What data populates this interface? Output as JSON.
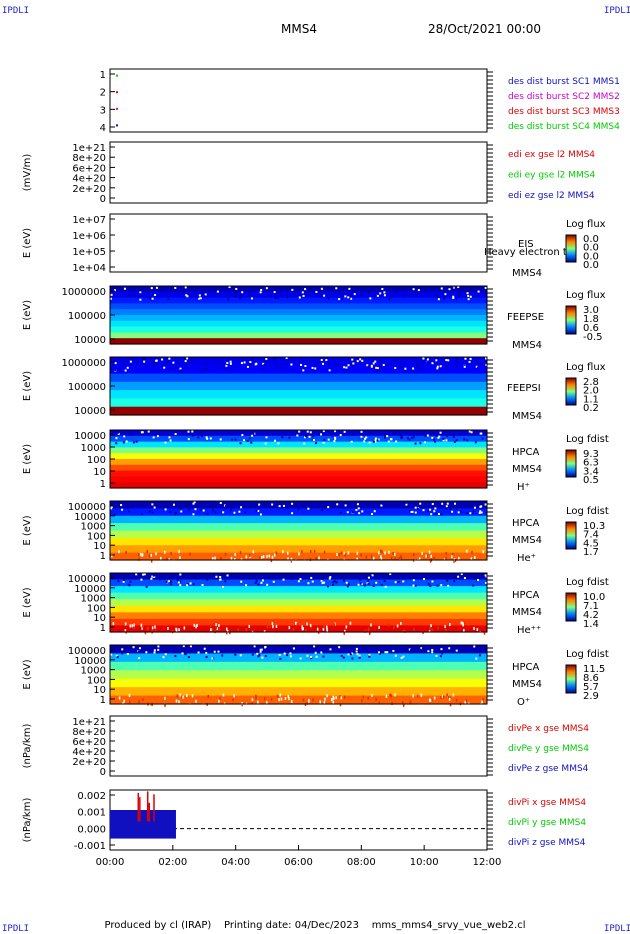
{
  "header": {
    "corner_label": "IPDLI",
    "spacecraft": "MMS4",
    "date": "28/Oct/2021 00:00"
  },
  "footer": {
    "text": "Produced by cl (IRAP)    Printing date: 04/Dec/2023    mms_mms4_srvy_vue_web2.cl"
  },
  "x_axis": {
    "ticks": [
      "00:00",
      "02:00",
      "04:00",
      "06:00",
      "08:00",
      "10:00",
      "12:00"
    ]
  },
  "colors": {
    "red": "#dd0000",
    "green": "#00cc00",
    "blue": "#1010c0",
    "magenta": "#cc00cc"
  },
  "chart_data": [
    {
      "type": "scatter",
      "ytick_labels": [
        "1",
        "2",
        "3",
        "4"
      ],
      "ylim": [
        0.6,
        4.4
      ],
      "series": [
        {
          "name": "des dist burst SC1 MMS1",
          "color": "#1010c0",
          "x": [
            0.05
          ],
          "y": [
            1
          ]
        },
        {
          "name": "des dist burst SC2 MMS2",
          "color": "#cc00cc",
          "x": [
            0.05
          ],
          "y": [
            2
          ]
        },
        {
          "name": "des dist burst SC3 MMS3",
          "color": "#dd0000",
          "x": [
            0.05
          ],
          "y": [
            3
          ]
        },
        {
          "name": "des dist burst SC4 MMS4",
          "color": "#00cc00",
          "x": [
            0.05
          ],
          "y": [
            4
          ]
        }
      ]
    },
    {
      "type": "line",
      "ylabel": "(mV/m)",
      "ytick_labels": [
        "1e+21",
        "8e+20",
        "6e+20",
        "4e+20",
        "2e+20",
        "0"
      ],
      "ylim": [
        0,
        1e+21
      ],
      "series": [
        {
          "name": "edi ex gse l2 MMS4",
          "color": "#dd0000"
        },
        {
          "name": "edi ey gse l2 MMS4",
          "color": "#00cc00"
        },
        {
          "name": "edi ez gse l2 MMS4",
          "color": "#1010c0"
        }
      ]
    },
    {
      "type": "heatmap",
      "ylabel": "E (eV)",
      "ytick_labels": [
        "1e+07",
        "1e+06",
        "1e+05",
        "1e+04"
      ],
      "ylim": [
        10000,
        10000000
      ],
      "yscale": "log",
      "labels": [
        "EIS",
        "Heavy electron tof",
        "MMS4"
      ],
      "colorbar": {
        "title": "Log flux",
        "ticks": [
          "0.0",
          "0.0",
          "0.0",
          "0.0"
        ]
      },
      "empty": true
    },
    {
      "type": "heatmap",
      "ylabel": "E (eV)",
      "ytick_labels": [
        "1000000",
        "100000",
        "10000"
      ],
      "ylim": [
        10000,
        1000000
      ],
      "yscale": "log",
      "labels": [
        "FEEPSE",
        "MMS4"
      ],
      "colorbar": {
        "title": "Log flux",
        "ticks": [
          "3.0",
          "1.8",
          "0.6",
          "-0.5"
        ]
      },
      "color_levels_top_to_bottom": [
        0.05,
        0.1,
        0.15,
        0.2,
        0.25,
        0.3,
        0.35,
        0.4,
        0.5,
        0.98
      ]
    },
    {
      "type": "heatmap",
      "ylabel": "E (eV)",
      "ytick_labels": [
        "1000000",
        "100000",
        "10000"
      ],
      "ylim": [
        10000,
        1000000
      ],
      "yscale": "log",
      "labels": [
        "FEEPSI",
        "MMS4"
      ],
      "colorbar": {
        "title": "Log flux",
        "ticks": [
          "2.8",
          "2.0",
          "1.1",
          "0.2"
        ]
      },
      "color_levels_top_to_bottom": [
        0.1,
        0.12,
        0.2,
        0.28,
        0.35,
        0.4,
        0.98
      ]
    },
    {
      "type": "heatmap",
      "ylabel": "E (eV)",
      "ytick_labels": [
        "10000",
        "1000",
        "100",
        "10",
        "1"
      ],
      "ylim": [
        1,
        30000
      ],
      "yscale": "log",
      "labels": [
        "HPCA",
        "MMS4",
        "H⁺"
      ],
      "colorbar": {
        "title": "Log fdist",
        "ticks": [
          "9.3",
          "6.3",
          "3.4",
          "0.5"
        ]
      },
      "color_levels_top_to_bottom": [
        0.08,
        0.2,
        0.35,
        0.5,
        0.62,
        0.72,
        0.8,
        0.86,
        0.88,
        0.9
      ]
    },
    {
      "type": "heatmap",
      "ylabel": "E (eV)",
      "ytick_labels": [
        "100000",
        "10000",
        "1000",
        "100",
        "10",
        "1"
      ],
      "ylim": [
        1,
        100000
      ],
      "yscale": "log",
      "labels": [
        "HPCA",
        "MMS4",
        "He⁺"
      ],
      "colorbar": {
        "title": "Log fdist",
        "ticks": [
          "10.3",
          "7.4",
          "4.5",
          "1.7"
        ]
      },
      "color_levels_top_to_bottom": [
        0.05,
        0.15,
        0.3,
        0.45,
        0.55,
        0.65,
        0.72,
        0.78
      ]
    },
    {
      "type": "heatmap",
      "ylabel": "E (eV)",
      "ytick_labels": [
        "100000",
        "10000",
        "1000",
        "100",
        "10",
        "1"
      ],
      "ylim": [
        1,
        100000
      ],
      "yscale": "log",
      "labels": [
        "HPCA",
        "MMS4",
        "He⁺⁺"
      ],
      "colorbar": {
        "title": "Log fdist",
        "ticks": [
          "10.0",
          "7.1",
          "4.2",
          "1.4"
        ]
      },
      "color_levels_top_to_bottom": [
        0.05,
        0.2,
        0.35,
        0.45,
        0.55,
        0.65,
        0.75,
        0.82,
        0.9
      ]
    },
    {
      "type": "heatmap",
      "ylabel": "E (eV)",
      "ytick_labels": [
        "100000",
        "10000",
        "1000",
        "100",
        "10",
        "1"
      ],
      "ylim": [
        1,
        100000
      ],
      "yscale": "log",
      "labels": [
        "HPCA",
        "MMS4",
        "O⁺"
      ],
      "colorbar": {
        "title": "Log fdist",
        "ticks": [
          "11.5",
          "8.6",
          "5.7",
          "2.9"
        ]
      },
      "color_levels_top_to_bottom": [
        0.05,
        0.3,
        0.45,
        0.55,
        0.62,
        0.7,
        0.78
      ]
    },
    {
      "type": "line",
      "ylabel": "(nPa/km)",
      "ytick_labels": [
        "1e+21",
        "8e+20",
        "6e+20",
        "4e+20",
        "2e+20",
        "0"
      ],
      "ylim": [
        0,
        1e+21
      ],
      "series": [
        {
          "name": "divPe x gse MMS4",
          "color": "#dd0000"
        },
        {
          "name": "divPe y gse MMS4",
          "color": "#00cc00"
        },
        {
          "name": "divPe z gse MMS4",
          "color": "#1010c0"
        }
      ]
    },
    {
      "type": "line",
      "ylabel": "(nPa/km)",
      "ytick_labels": [
        "0.002",
        "0.001",
        "0.000",
        "-0.001"
      ],
      "ylim": [
        -0.0015,
        0.0027
      ],
      "xlim_hours": [
        0,
        12
      ],
      "series": [
        {
          "name": "divPi x gse MMS4",
          "color": "#dd0000",
          "x": [
            0.9,
            0.95,
            1.2,
            1.25,
            1.4
          ],
          "y": [
            0.0025,
            0.0022,
            0.0026,
            0.0018,
            0.0024
          ]
        },
        {
          "name": "divPi y gse MMS4",
          "color": "#00cc00"
        },
        {
          "name": "divPi z gse MMS4",
          "color": "#1010c0",
          "x": [
            0,
            2.1
          ],
          "y": [
            -0.0007,
            0.0013
          ]
        }
      ]
    }
  ]
}
